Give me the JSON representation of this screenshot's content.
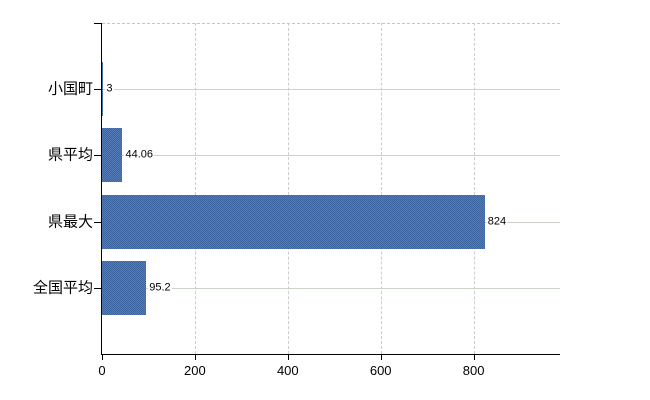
{
  "chart_data": {
    "type": "bar",
    "orientation": "horizontal",
    "title": "",
    "xlabel": "",
    "ylabel": "",
    "categories": [
      "小国町",
      "県平均",
      "県最大",
      "全国平均"
    ],
    "values": [
      3,
      44.06,
      824,
      95.2
    ],
    "value_labels": [
      "3",
      "44.06",
      "824",
      "95.2"
    ],
    "x_ticks": [
      {
        "value": 0,
        "label": "0"
      },
      {
        "value": 200,
        "label": "200"
      },
      {
        "value": 400,
        "label": "400"
      },
      {
        "value": 600,
        "label": "600"
      },
      {
        "value": 800,
        "label": "800"
      }
    ],
    "xlim": [
      0,
      986
    ],
    "grid": true,
    "legend_position": "none",
    "colors": {
      "bar_fill": "#4a6fab",
      "bar_dither_dark": "#3c64a0",
      "bar_dither_light": "#567cb8",
      "axis": "#000000",
      "grid_horizontal": "#ccd3c8",
      "grid_vertical": "#d0c9d0",
      "plot_top_border": "#c6c6c6",
      "text": "#000000",
      "background": "#ffffff"
    }
  }
}
